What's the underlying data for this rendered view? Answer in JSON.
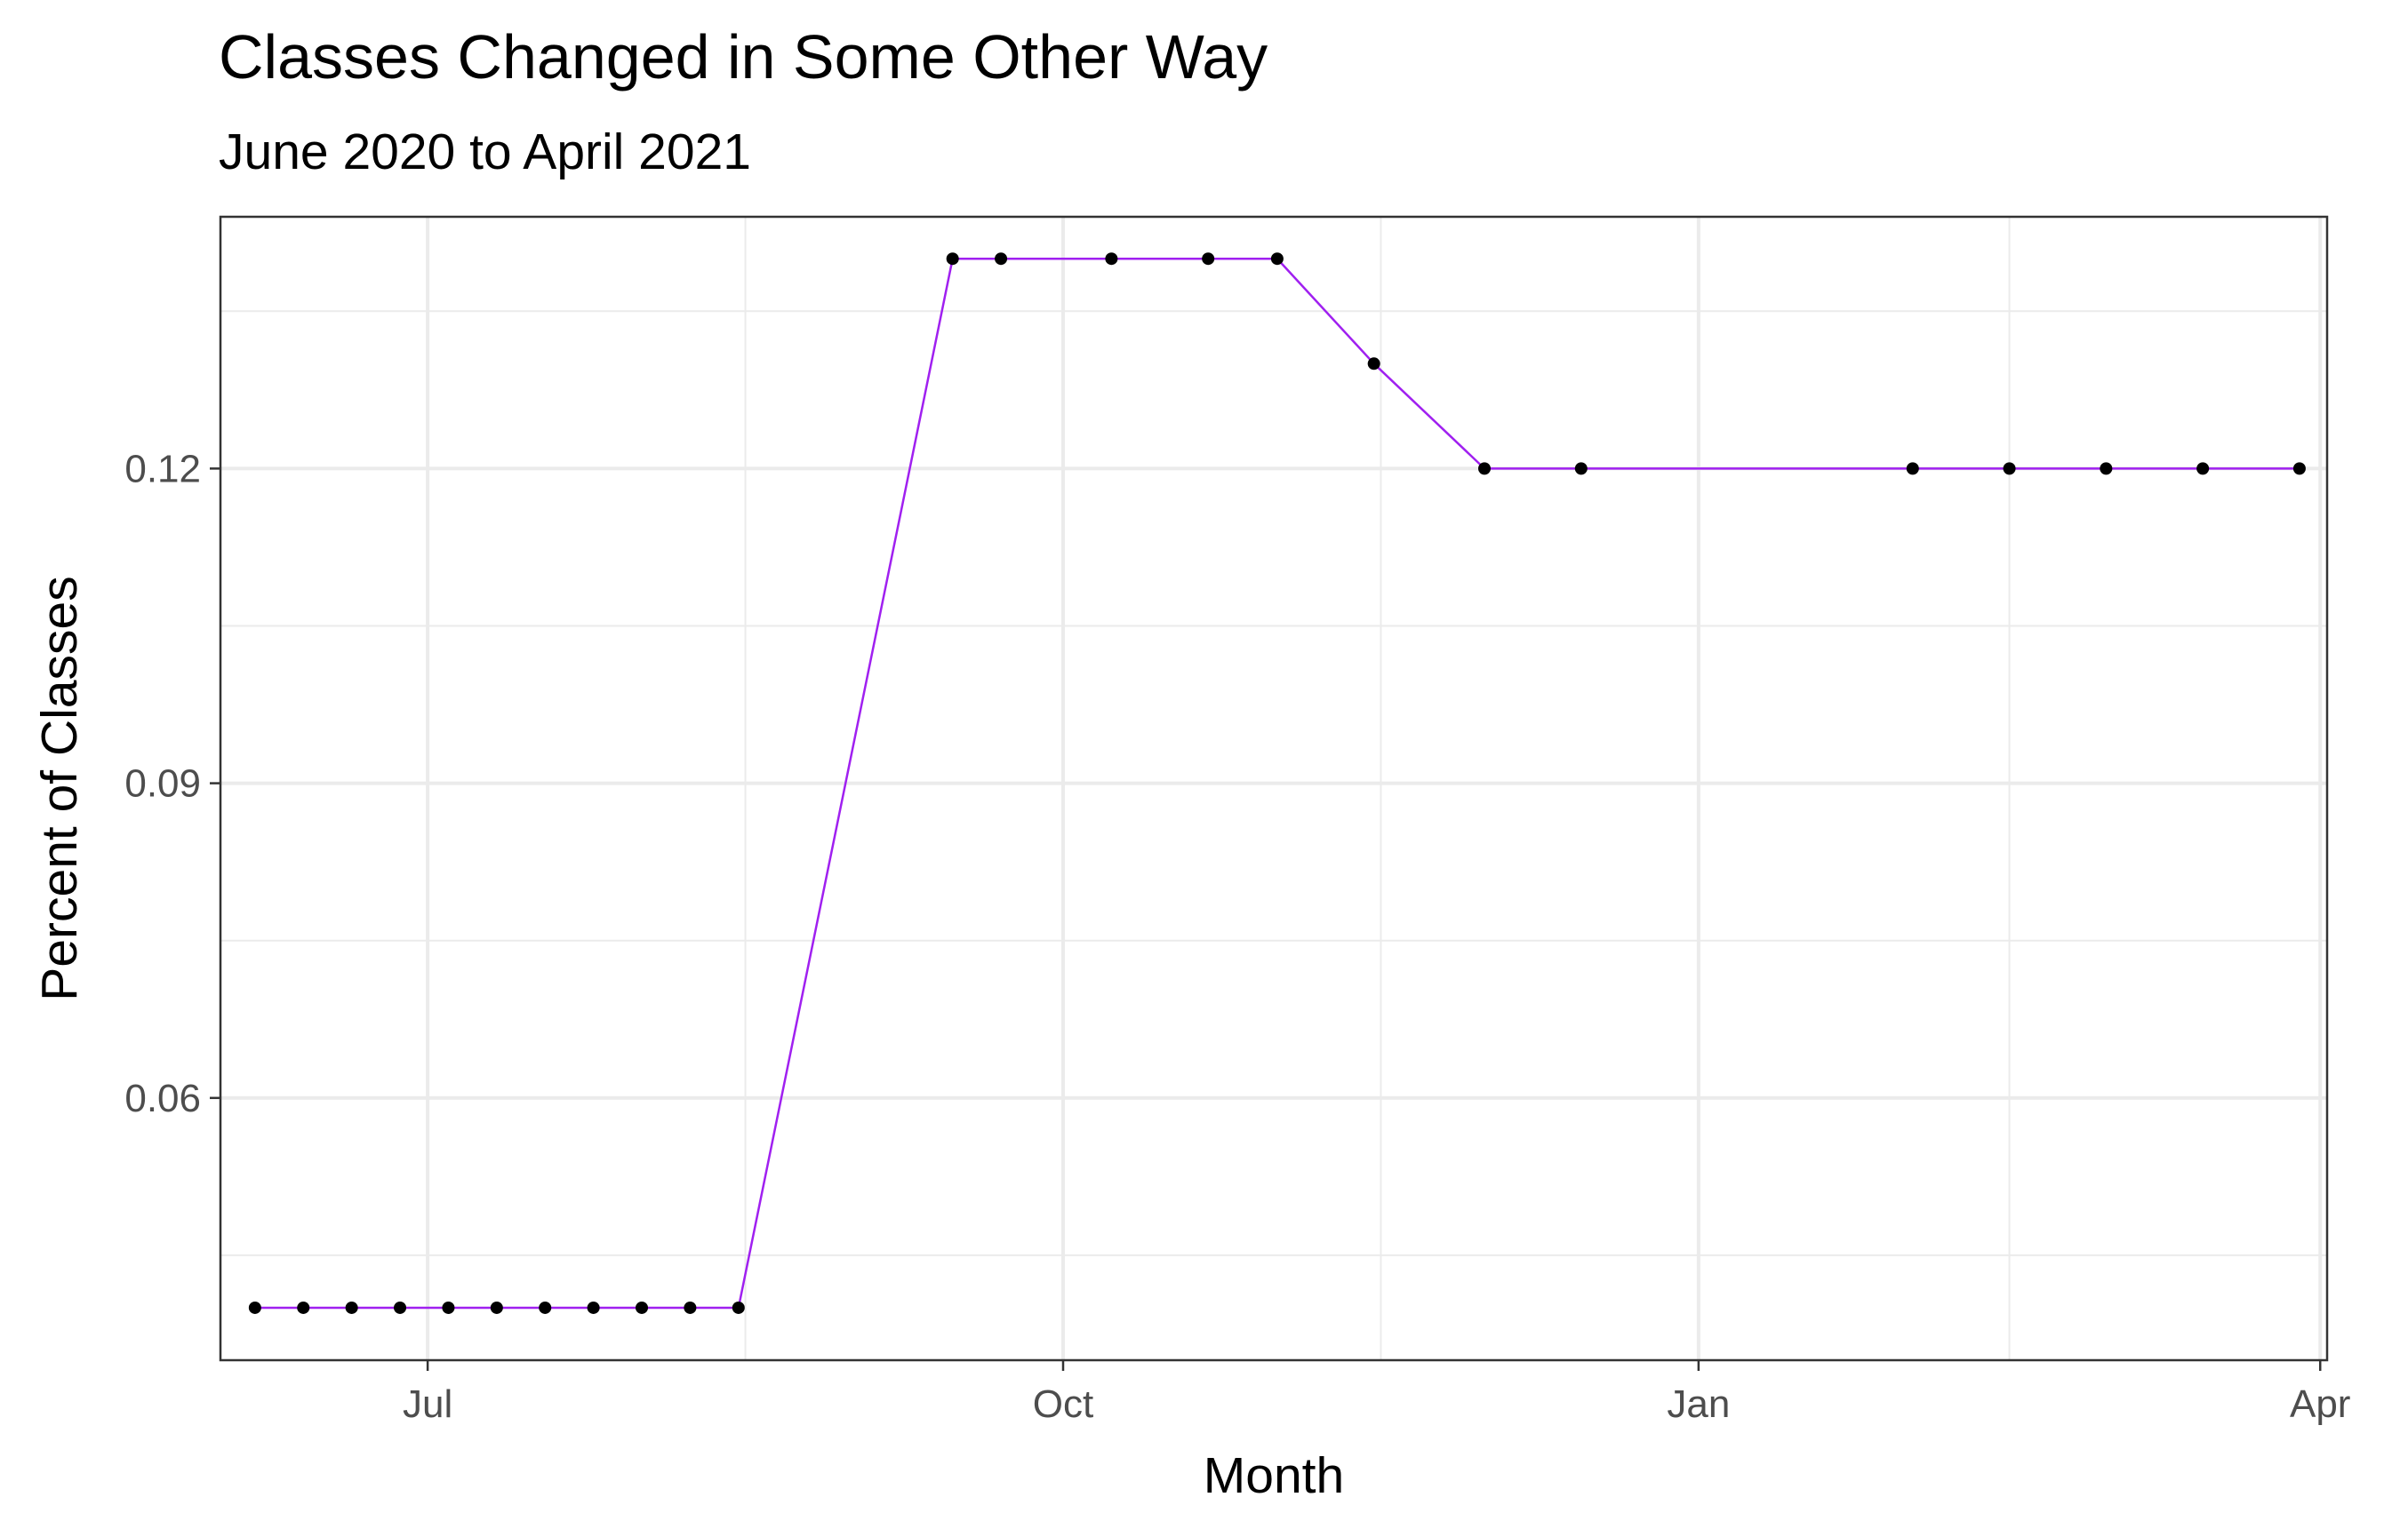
{
  "chart_data": {
    "type": "line",
    "title": "Classes Changed in Some Other Way",
    "subtitle": "June 2020 to April 2021",
    "xlabel": "Month",
    "ylabel": "Percent of Classes",
    "x_ticks": [
      {
        "date": "2020-07-01",
        "label": "Jul"
      },
      {
        "date": "2020-10-01",
        "label": "Oct"
      },
      {
        "date": "2021-01-01",
        "label": "Jan"
      },
      {
        "date": "2021-04-01",
        "label": "Apr"
      }
    ],
    "y_ticks": [
      {
        "value": 0.06,
        "label": "0.06"
      },
      {
        "value": 0.09,
        "label": "0.09"
      },
      {
        "value": 0.12,
        "label": "0.12"
      }
    ],
    "xlim": [
      "2020-06-01",
      "2021-04-02"
    ],
    "ylim": [
      0.035,
      0.144
    ],
    "grid": true,
    "line_color": "#a020f0",
    "point_color": "#000000",
    "series": [
      {
        "x": [
          "2020-06-06",
          "2020-06-13",
          "2020-06-20",
          "2020-06-27",
          "2020-07-04",
          "2020-07-11",
          "2020-07-18",
          "2020-07-25",
          "2020-08-01",
          "2020-08-08",
          "2020-08-15",
          "2020-09-15",
          "2020-09-22",
          "2020-10-08",
          "2020-10-22",
          "2020-11-01",
          "2020-11-15",
          "2020-12-01",
          "2020-12-15",
          "2021-02-01",
          "2021-02-15",
          "2021-03-01",
          "2021-03-15",
          "2021-03-29"
        ],
        "values": [
          0.04,
          0.04,
          0.04,
          0.04,
          0.04,
          0.04,
          0.04,
          0.04,
          0.04,
          0.04,
          0.04,
          0.14,
          0.14,
          0.14,
          0.14,
          0.14,
          0.13,
          0.12,
          0.12,
          0.12,
          0.12,
          0.12,
          0.12,
          0.12
        ]
      }
    ]
  }
}
